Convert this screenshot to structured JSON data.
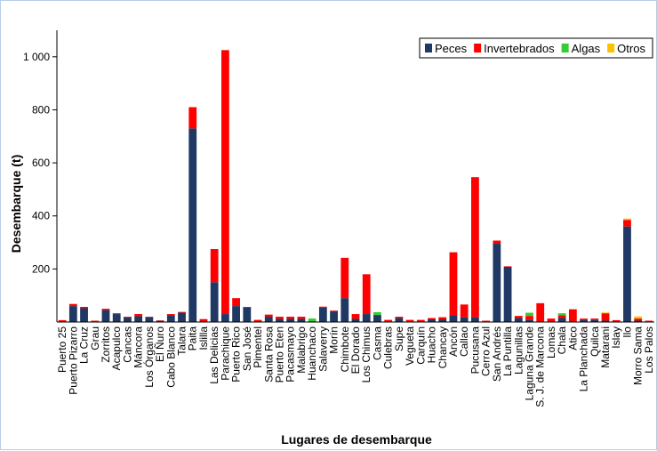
{
  "chart_data": {
    "type": "bar",
    "stacked": true,
    "title": "",
    "xlabel": "Lugares de desembarque",
    "ylabel": "Desembarque (t)",
    "ylim": [
      0,
      1100
    ],
    "yticks": [
      200,
      400,
      600,
      800,
      1000
    ],
    "ytick_labels": [
      "200",
      "400",
      "600",
      "800",
      "1 000"
    ],
    "grid": false,
    "legend_position": "top-right",
    "categories": [
      "Puerto 25",
      "Puerto Pizarro",
      "La Cruz",
      "Grau",
      "Zorritos",
      "Acapulco",
      "Cancas",
      "Máncora",
      "Los Órganos",
      "El Ñuro",
      "Cabo Blanco",
      "Talara",
      "Paita",
      "Islilla",
      "Las Delicias",
      "Parachique",
      "Puerto Rico",
      "San José",
      "Pimentel",
      "Santa Rosa",
      "Puerto Eten",
      "Pacasmayo",
      "Malabrigo",
      "Huanchaco",
      "Salaverry",
      "Morín",
      "Chimbote",
      "El Dorado",
      "Los Chimus",
      "Casma",
      "Culebras",
      "Supe",
      "Vegueta",
      "Carquín",
      "Huacho",
      "Chancay",
      "Ancón",
      "Callao",
      "Pucusana",
      "Cerro Azul",
      "San Andrés",
      "La Puntilla",
      "Lagunillas",
      "Laguna Grande",
      "S. J. de Marcona",
      "Lomas",
      "Chala",
      "Atico",
      "La Planchada",
      "Quilca",
      "Matarani",
      "Islay",
      "Ilo",
      "Morro Sama",
      "Los Palos"
    ],
    "series": [
      {
        "name": "Peces",
        "color": "#1f3864",
        "values": [
          2,
          60,
          52,
          3,
          45,
          30,
          18,
          22,
          18,
          5,
          25,
          35,
          730,
          3,
          150,
          30,
          60,
          55,
          3,
          20,
          12,
          12,
          12,
          3,
          55,
          40,
          90,
          12,
          30,
          25,
          3,
          15,
          3,
          3,
          10,
          10,
          25,
          18,
          18,
          3,
          295,
          208,
          15,
          8,
          3,
          3,
          15,
          3,
          8,
          8,
          5,
          3,
          360,
          5,
          3
        ]
      },
      {
        "name": "Invertebrados",
        "color": "#ff0000",
        "values": [
          5,
          8,
          5,
          2,
          5,
          3,
          2,
          8,
          2,
          1,
          5,
          3,
          80,
          8,
          125,
          995,
          30,
          2,
          5,
          8,
          8,
          8,
          8,
          0,
          3,
          3,
          152,
          18,
          150,
          2,
          5,
          5,
          5,
          5,
          5,
          8,
          238,
          48,
          528,
          2,
          12,
          2,
          8,
          15,
          68,
          10,
          10,
          45,
          5,
          5,
          28,
          4,
          25,
          8,
          2
        ]
      },
      {
        "name": "Algas",
        "color": "#33cc33",
        "values": [
          0,
          0,
          0,
          0,
          0,
          0,
          0,
          0,
          0,
          0,
          0,
          0,
          0,
          0,
          0,
          0,
          0,
          0,
          0,
          0,
          0,
          0,
          0,
          10,
          0,
          0,
          0,
          0,
          0,
          10,
          0,
          0,
          0,
          0,
          0,
          0,
          0,
          0,
          0,
          0,
          0,
          0,
          0,
          12,
          0,
          0,
          8,
          0,
          0,
          0,
          0,
          0,
          0,
          0,
          0
        ]
      },
      {
        "name": "Otros",
        "color": "#ffc000",
        "values": [
          0,
          0,
          0,
          0,
          0,
          0,
          0,
          0,
          0,
          0,
          0,
          0,
          0,
          0,
          0,
          0,
          0,
          0,
          0,
          0,
          0,
          0,
          0,
          0,
          0,
          0,
          0,
          0,
          0,
          0,
          0,
          0,
          0,
          0,
          0,
          0,
          0,
          0,
          0,
          0,
          0,
          0,
          0,
          0,
          0,
          0,
          0,
          0,
          0,
          0,
          3,
          0,
          5,
          8,
          0
        ]
      }
    ]
  }
}
